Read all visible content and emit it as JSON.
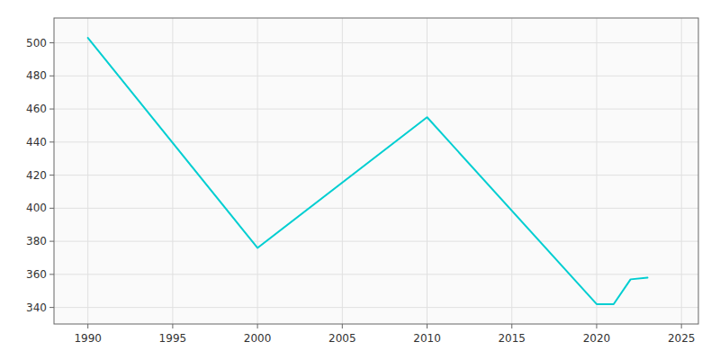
{
  "chart_data": {
    "type": "line",
    "x": [
      1990,
      2000,
      2010,
      2020,
      2021,
      2022,
      2023
    ],
    "values": [
      503,
      376,
      455,
      342,
      342,
      357,
      358
    ],
    "color": "#00CED1",
    "xlim": [
      1988,
      2026
    ],
    "ylim": [
      330,
      515
    ],
    "xticks": [
      1990,
      1995,
      2000,
      2005,
      2010,
      2015,
      2020,
      2025
    ],
    "yticks": [
      340,
      360,
      380,
      400,
      420,
      440,
      460,
      480,
      500
    ],
    "grid": true
  }
}
